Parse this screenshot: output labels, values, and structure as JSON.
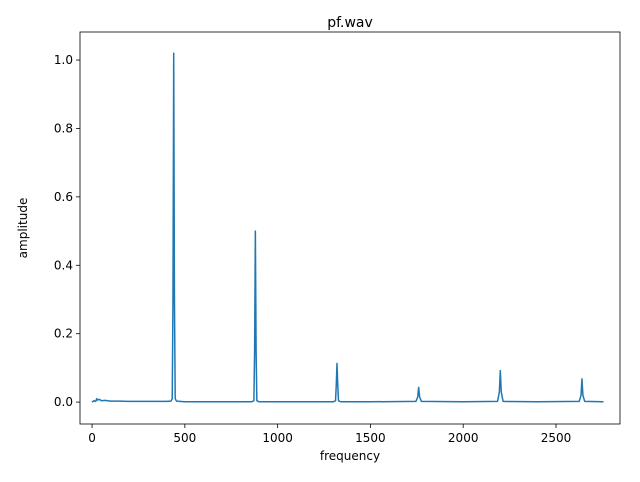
{
  "chart_data": {
    "type": "line",
    "title": "pf.wav",
    "x_label": "frequency",
    "y_label": "amplitude",
    "x": [
      0,
      10,
      20,
      25,
      30,
      40,
      50,
      70,
      100,
      150,
      200,
      300,
      400,
      425,
      432,
      436,
      440,
      444,
      448,
      455,
      500,
      700,
      860,
      872,
      876,
      880,
      884,
      888,
      900,
      1100,
      1300,
      1312,
      1316,
      1320,
      1324,
      1328,
      1340,
      1500,
      1745,
      1755,
      1760,
      1765,
      1775,
      2000,
      2185,
      2195,
      2200,
      2205,
      2215,
      2400,
      2625,
      2635,
      2640,
      2645,
      2655,
      2756
    ],
    "series": [
      {
        "name": "amplitude",
        "color": "#1f77b4",
        "values": [
          0.0,
          0.004,
          0.002,
          0.01,
          0.006,
          0.008,
          0.004,
          0.005,
          0.003,
          0.003,
          0.002,
          0.002,
          0.002,
          0.003,
          0.01,
          0.3,
          1.02,
          0.3,
          0.01,
          0.003,
          0.001,
          0.001,
          0.001,
          0.004,
          0.15,
          0.5,
          0.15,
          0.004,
          0.001,
          0.001,
          0.001,
          0.004,
          0.05,
          0.113,
          0.05,
          0.004,
          0.001,
          0.001,
          0.002,
          0.015,
          0.043,
          0.015,
          0.002,
          0.001,
          0.002,
          0.03,
          0.092,
          0.03,
          0.002,
          0.001,
          0.002,
          0.02,
          0.068,
          0.02,
          0.002,
          0.001
        ]
      }
    ],
    "xlim": [
      -65,
      2845
    ],
    "ylim": [
      -0.064,
      1.082
    ],
    "xticks": [
      0,
      500,
      1000,
      1500,
      2000,
      2500
    ],
    "yticks": [
      {
        "value": 0,
        "label": "0.0"
      },
      {
        "value": 0.2,
        "label": "0.2"
      },
      {
        "value": 0.4,
        "label": "0.4"
      },
      {
        "value": 0.6,
        "label": "0.6"
      },
      {
        "value": 0.8,
        "label": "0.8"
      },
      {
        "value": 1,
        "label": "1.0"
      }
    ]
  }
}
